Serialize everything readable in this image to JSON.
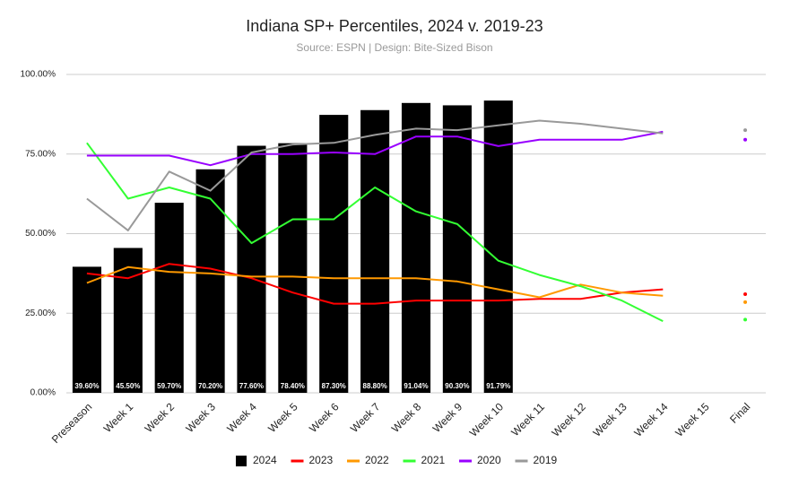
{
  "chart_data": {
    "type": "combo",
    "title": "Indiana SP+ Percentiles, 2024 v. 2019-23",
    "subtitle": "Source: ESPN | Design: Bite-Sized Bison",
    "categories": [
      "Preseason",
      "Week 1",
      "Week 2",
      "Week 3",
      "Week 4",
      "Week 5",
      "Week 6",
      "Week 7",
      "Week 8",
      "Week 9",
      "Week 10",
      "Week 11",
      "Week 12",
      "Week 13",
      "Week 14",
      "Week 15",
      "Final"
    ],
    "ylim": [
      0,
      100
    ],
    "yticks": [
      {
        "value": 0,
        "label": "0.00%"
      },
      {
        "value": 25,
        "label": "25.00%"
      },
      {
        "value": 50,
        "label": "50.00%"
      },
      {
        "value": 75,
        "label": "75.00%"
      },
      {
        "value": 100,
        "label": "100.00%"
      }
    ],
    "grid": true,
    "legend": "bottom",
    "series": [
      {
        "name": "2024",
        "type": "bar",
        "color": "#000000",
        "values": [
          39.6,
          45.5,
          59.7,
          70.2,
          77.6,
          78.4,
          87.3,
          88.8,
          91.04,
          90.3,
          91.79,
          null,
          null,
          null,
          null,
          null,
          null
        ],
        "value_labels": [
          "39.60%",
          "45.50%",
          "59.70%",
          "70.20%",
          "77.60%",
          "78.40%",
          "87.30%",
          "88.80%",
          "91.04%",
          "90.30%",
          "91.79%",
          null,
          null,
          null,
          null,
          null,
          null
        ]
      },
      {
        "name": "2023",
        "type": "line",
        "color": "#ff0000",
        "values": [
          37.5,
          36,
          40.5,
          39,
          36,
          31.5,
          28,
          28,
          29,
          29,
          29,
          29.5,
          29.5,
          31.5,
          32.5,
          null,
          31
        ]
      },
      {
        "name": "2022",
        "type": "line",
        "color": "#ff9900",
        "values": [
          34.5,
          39.5,
          38,
          37.5,
          36.5,
          36.5,
          36,
          36,
          36,
          35,
          32.5,
          30,
          34,
          31.5,
          30.5,
          null,
          28.5
        ]
      },
      {
        "name": "2021",
        "type": "line",
        "color": "#33ff33",
        "values": [
          78.5,
          61,
          64.5,
          61,
          47,
          54.5,
          54.5,
          64.5,
          57,
          53,
          41.5,
          37,
          33.5,
          29,
          22.5,
          null,
          23
        ]
      },
      {
        "name": "2020",
        "type": "line",
        "color": "#9900ff",
        "values": [
          74.5,
          74.5,
          74.5,
          71.5,
          75,
          75,
          75.5,
          75,
          80.5,
          80.5,
          77.5,
          79.5,
          79.5,
          79.5,
          82,
          null,
          79.5
        ]
      },
      {
        "name": "2019",
        "type": "line",
        "color": "#999999",
        "values": [
          61,
          51,
          69.5,
          63.5,
          75.5,
          78,
          78.5,
          81,
          83,
          82.5,
          84,
          85.5,
          84.5,
          83,
          81.5,
          null,
          82.5
        ]
      }
    ]
  }
}
